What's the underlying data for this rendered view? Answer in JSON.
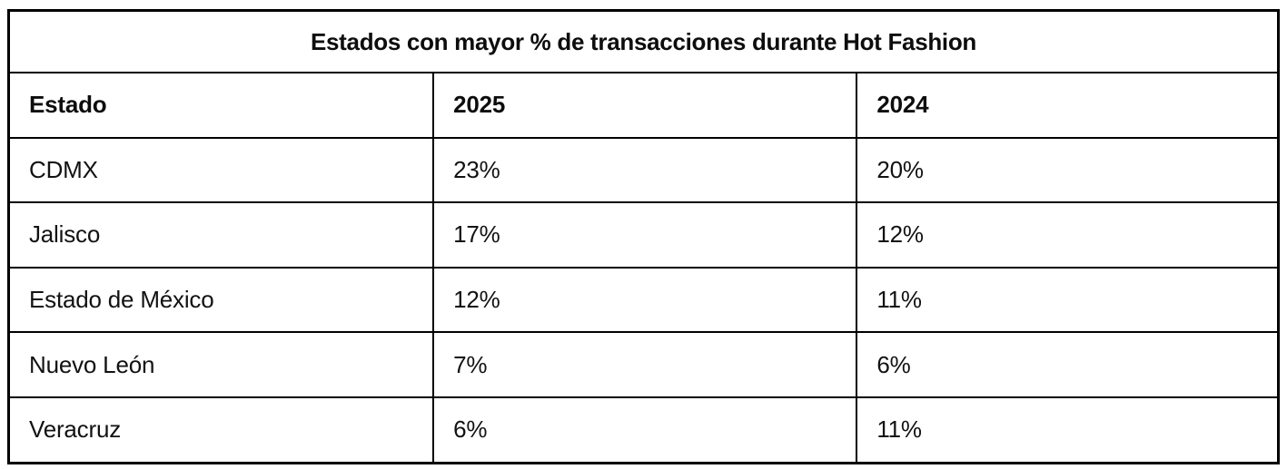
{
  "table": {
    "title": "Estados con mayor % de transacciones durante Hot Fashion",
    "columns": [
      "Estado",
      "2025",
      "2024"
    ],
    "rows": [
      [
        "CDMX",
        "23%",
        "20%"
      ],
      [
        "Jalisco",
        "17%",
        "12%"
      ],
      [
        "Estado de México",
        "12%",
        "11%"
      ],
      [
        "Nuevo León",
        "7%",
        "6%"
      ],
      [
        "Veracruz",
        "6%",
        "11%"
      ]
    ]
  },
  "chart_data": {
    "type": "table",
    "title": "Estados con mayor % de transacciones durante Hot Fashion",
    "categories": [
      "CDMX",
      "Jalisco",
      "Estado de México",
      "Nuevo León",
      "Veracruz"
    ],
    "series": [
      {
        "name": "2025",
        "values": [
          23,
          17,
          12,
          7,
          6
        ]
      },
      {
        "name": "2024",
        "values": [
          20,
          12,
          11,
          6,
          11
        ]
      }
    ],
    "unit": "%",
    "layout": {
      "header_row": true,
      "title_row_spans_all_columns": true,
      "grid": "full-borders"
    }
  },
  "colors": {
    "border": "#000000",
    "text": "#0d0d0d",
    "background": "#ffffff"
  }
}
